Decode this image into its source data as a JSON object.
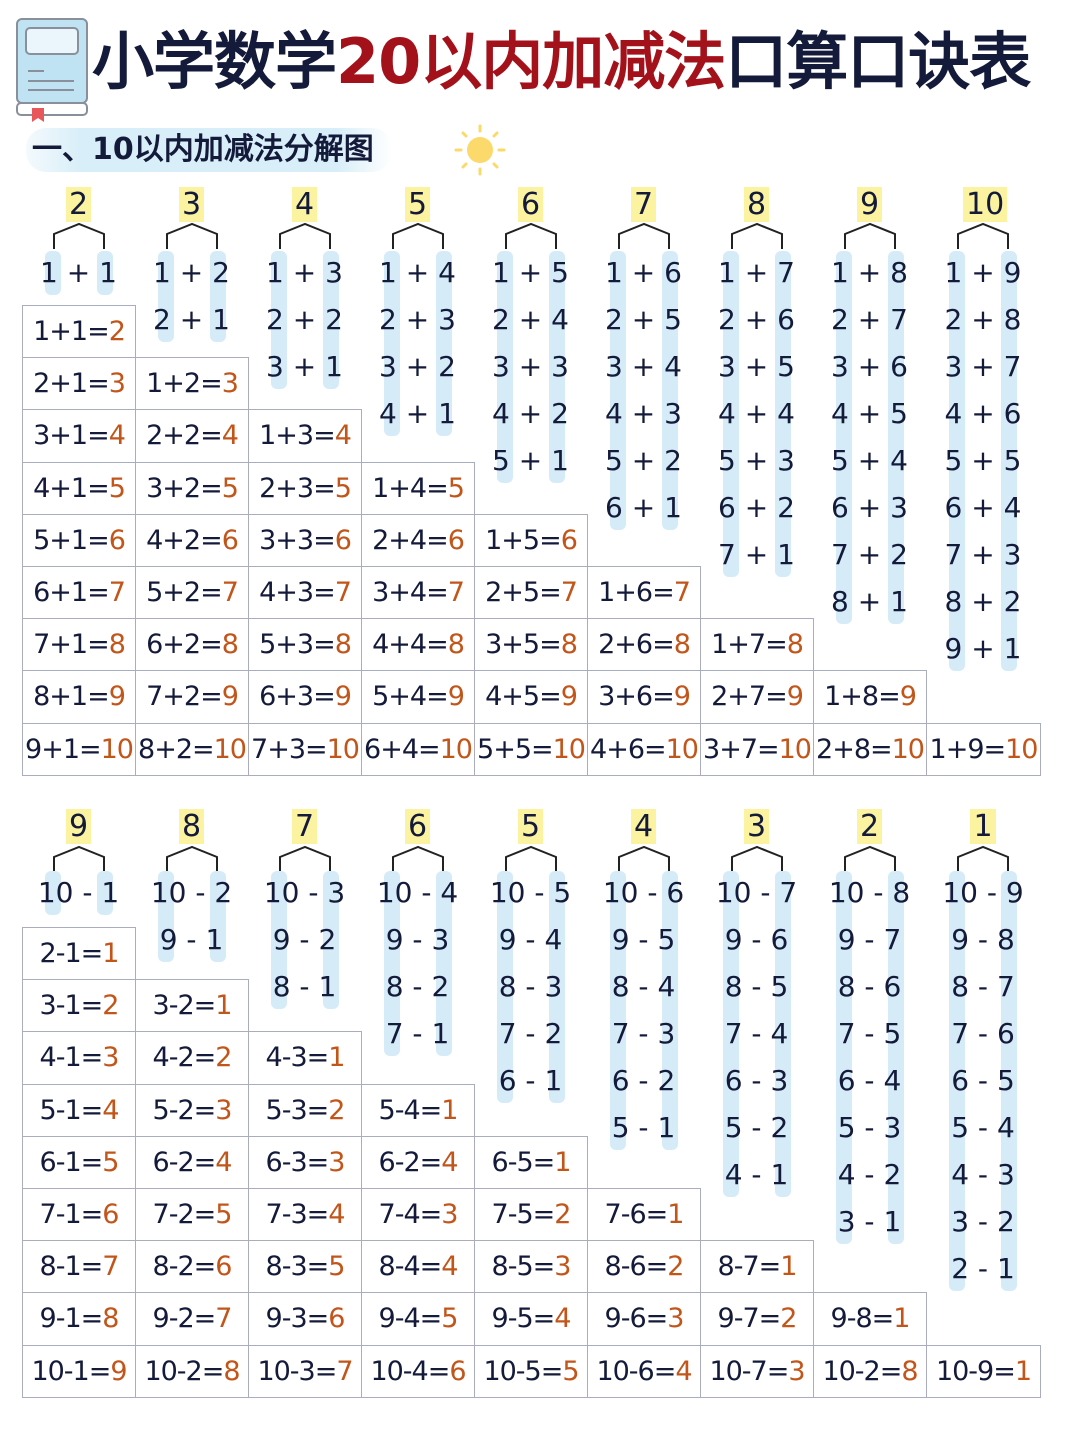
{
  "title": {
    "part1": "小学数学",
    "part2": "20以内加减法",
    "part3": "口算口诀表"
  },
  "subtitle": "一、10以内加减法分解图",
  "colors": {
    "title_dark": "#141a3a",
    "title_red": "#a3121a",
    "answer": "#c2561a",
    "number_highlight": "#fbf3a0",
    "stripe": "#d5ebf8"
  },
  "icons": [
    "book-icon",
    "sun-icon",
    "bracket-icon"
  ],
  "addition": {
    "numbers": [
      "2",
      "3",
      "4",
      "5",
      "6",
      "7",
      "8",
      "9",
      "10"
    ],
    "decompositions": [
      [
        "1 + 1"
      ],
      [
        "1 + 2",
        "2 + 1"
      ],
      [
        "1 + 3",
        "2 + 2",
        "3 + 1"
      ],
      [
        "1 + 4",
        "2 + 3",
        "3 + 2",
        "4 + 1"
      ],
      [
        "1 + 5",
        "2 + 4",
        "3 + 3",
        "4 + 2",
        "5 + 1"
      ],
      [
        "1 + 6",
        "2 + 5",
        "3 + 4",
        "4 + 3",
        "5 + 2",
        "6 + 1"
      ],
      [
        "1 + 7",
        "2 + 6",
        "3 + 5",
        "4 + 4",
        "5 + 3",
        "6 + 2",
        "7 + 1"
      ],
      [
        "1 + 8",
        "2 + 7",
        "3 + 6",
        "4 + 5",
        "5 + 4",
        "6 + 3",
        "7 + 2",
        "8 + 1"
      ],
      [
        "1 + 9",
        "2 + 8",
        "3 + 7",
        "4 + 6",
        "5 + 5",
        "6 + 4",
        "7 + 3",
        "8 + 2",
        "9 + 1"
      ]
    ],
    "table": [
      [
        {
          "e": "1+1=",
          "a": "2"
        },
        {
          "e": "2+1=",
          "a": "3"
        },
        {
          "e": "3+1=",
          "a": "4"
        },
        {
          "e": "4+1=",
          "a": "5"
        },
        {
          "e": "5+1=",
          "a": "6"
        },
        {
          "e": "6+1=",
          "a": "7"
        },
        {
          "e": "7+1=",
          "a": "8"
        },
        {
          "e": "8+1=",
          "a": "9"
        },
        {
          "e": "9+1=",
          "a": "10"
        }
      ],
      [
        {
          "e": "1+2=",
          "a": "3"
        },
        {
          "e": "2+2=",
          "a": "4"
        },
        {
          "e": "3+2=",
          "a": "5"
        },
        {
          "e": "4+2=",
          "a": "6"
        },
        {
          "e": "5+2=",
          "a": "7"
        },
        {
          "e": "6+2=",
          "a": "8"
        },
        {
          "e": "7+2=",
          "a": "9"
        },
        {
          "e": "8+2=",
          "a": "10"
        }
      ],
      [
        {
          "e": "1+3=",
          "a": "4"
        },
        {
          "e": "2+3=",
          "a": "5"
        },
        {
          "e": "3+3=",
          "a": "6"
        },
        {
          "e": "4+3=",
          "a": "7"
        },
        {
          "e": "5+3=",
          "a": "8"
        },
        {
          "e": "6+3=",
          "a": "9"
        },
        {
          "e": "7+3=",
          "a": "10"
        }
      ],
      [
        {
          "e": "1+4=",
          "a": "5"
        },
        {
          "e": "2+4=",
          "a": "6"
        },
        {
          "e": "3+4=",
          "a": "7"
        },
        {
          "e": "4+4=",
          "a": "8"
        },
        {
          "e": "5+4=",
          "a": "9"
        },
        {
          "e": "6+4=",
          "a": "10"
        }
      ],
      [
        {
          "e": "1+5=",
          "a": "6"
        },
        {
          "e": "2+5=",
          "a": "7"
        },
        {
          "e": "3+5=",
          "a": "8"
        },
        {
          "e": "4+5=",
          "a": "9"
        },
        {
          "e": "5+5=",
          "a": "10"
        }
      ],
      [
        {
          "e": "1+6=",
          "a": "7"
        },
        {
          "e": "2+6=",
          "a": "8"
        },
        {
          "e": "3+6=",
          "a": "9"
        },
        {
          "e": "4+6=",
          "a": "10"
        }
      ],
      [
        {
          "e": "1+7=",
          "a": "8"
        },
        {
          "e": "2+7=",
          "a": "9"
        },
        {
          "e": "3+7=",
          "a": "10"
        }
      ],
      [
        {
          "e": "1+8=",
          "a": "9"
        },
        {
          "e": "2+8=",
          "a": "10"
        }
      ],
      [
        {
          "e": "1+9=",
          "a": "10"
        }
      ]
    ]
  },
  "subtraction": {
    "numbers": [
      "9",
      "8",
      "7",
      "6",
      "5",
      "4",
      "3",
      "2",
      "1"
    ],
    "decompositions": [
      [
        "10 - 1"
      ],
      [
        "10 - 2",
        "9 - 1"
      ],
      [
        "10 - 3",
        "9 - 2",
        "8 - 1"
      ],
      [
        "10 - 4",
        "9 - 3",
        "8 - 2",
        "7 - 1"
      ],
      [
        "10 - 5",
        "9 - 4",
        "8 - 3",
        "7 - 2",
        "6 - 1"
      ],
      [
        "10 - 6",
        "9 - 5",
        "8 - 4",
        "7 - 3",
        "6 - 2",
        "5 - 1"
      ],
      [
        "10 - 7",
        "9 - 6",
        "8 - 5",
        "7 - 4",
        "6 - 3",
        "5 - 2",
        "4 - 1"
      ],
      [
        "10 - 8",
        "9 - 7",
        "8 - 6",
        "7 - 5",
        "6 - 4",
        "5 - 3",
        "4 - 2",
        "3 - 1"
      ],
      [
        "10 - 9",
        "9 - 8",
        "8 - 7",
        "7 - 6",
        "6 - 5",
        "5 - 4",
        "4 - 3",
        "3 - 2",
        "2 - 1"
      ]
    ],
    "table": [
      [
        {
          "e": "2-1=",
          "a": "1"
        },
        {
          "e": "3-1=",
          "a": "2"
        },
        {
          "e": "4-1=",
          "a": "3"
        },
        {
          "e": "5-1=",
          "a": "4"
        },
        {
          "e": "6-1=",
          "a": "5"
        },
        {
          "e": "7-1=",
          "a": "6"
        },
        {
          "e": "8-1=",
          "a": "7"
        },
        {
          "e": "9-1=",
          "a": "8"
        },
        {
          "e": "10-1=",
          "a": "9"
        }
      ],
      [
        {
          "e": "3-2=",
          "a": "1"
        },
        {
          "e": "4-2=",
          "a": "2"
        },
        {
          "e": "5-2=",
          "a": "3"
        },
        {
          "e": "6-2=",
          "a": "4"
        },
        {
          "e": "7-2=",
          "a": "5"
        },
        {
          "e": "8-2=",
          "a": "6"
        },
        {
          "e": "9-2=",
          "a": "7"
        },
        {
          "e": "10-2=",
          "a": "8"
        }
      ],
      [
        {
          "e": "4-3=",
          "a": "1"
        },
        {
          "e": "5-3=",
          "a": "2"
        },
        {
          "e": "6-3=",
          "a": "3"
        },
        {
          "e": "7-3=",
          "a": "4"
        },
        {
          "e": "8-3=",
          "a": "5"
        },
        {
          "e": "9-3=",
          "a": "6"
        },
        {
          "e": "10-3=",
          "a": "7"
        }
      ],
      [
        {
          "e": "5-4=",
          "a": "1"
        },
        {
          "e": "6-2=",
          "a": "4"
        },
        {
          "e": "7-4=",
          "a": "3"
        },
        {
          "e": "8-4=",
          "a": "4"
        },
        {
          "e": "9-4=",
          "a": "5"
        },
        {
          "e": "10-4=",
          "a": "6"
        }
      ],
      [
        {
          "e": "6-5=",
          "a": "1"
        },
        {
          "e": "7-5=",
          "a": "2"
        },
        {
          "e": "8-5=",
          "a": "3"
        },
        {
          "e": "9-5=",
          "a": "4"
        },
        {
          "e": "10-5=",
          "a": "5"
        }
      ],
      [
        {
          "e": "7-6=",
          "a": "1"
        },
        {
          "e": "8-6=",
          "a": "2"
        },
        {
          "e": "9-6=",
          "a": "3"
        },
        {
          "e": "10-6=",
          "a": "4"
        }
      ],
      [
        {
          "e": "8-7=",
          "a": "1"
        },
        {
          "e": "9-7=",
          "a": "2"
        },
        {
          "e": "10-7=",
          "a": "3"
        }
      ],
      [
        {
          "e": "9-8=",
          "a": "1"
        },
        {
          "e": "10-2=",
          "a": "8"
        }
      ],
      [
        {
          "e": "10-9=",
          "a": "1"
        }
      ]
    ]
  }
}
